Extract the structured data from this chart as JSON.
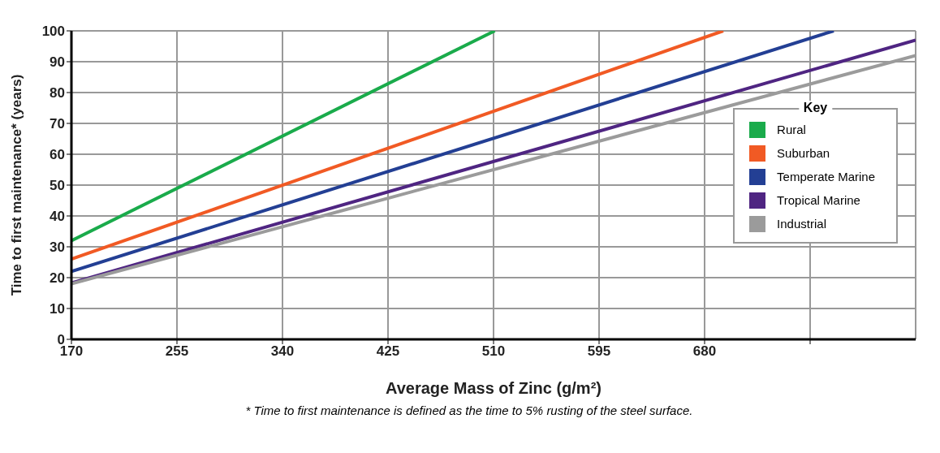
{
  "chart_data": {
    "type": "line",
    "xlabel": "Average Mass of Zinc (g/m²)",
    "ylabel": "Time to first maintenance* (years)",
    "legend_title": "Key",
    "annotations": [
      "* Time to first maintenance is defined as the time to 5% rusting of the steel surface."
    ],
    "xlim": [
      170,
      850
    ],
    "xticks": [
      170,
      255,
      340,
      425,
      510,
      595,
      680,
      {
        "value": 765,
        "label": null
      }
    ],
    "ylim": [
      0,
      100
    ],
    "yticks": [
      0,
      10,
      20,
      30,
      40,
      50,
      60,
      70,
      80,
      90,
      100
    ],
    "grid": true,
    "legend": "top right",
    "marker": "none",
    "line_style": "solid",
    "series": [
      {
        "name": "Rural",
        "color": "#1aab4b",
        "x": [
          170,
          511
        ],
        "values": [
          32,
          100
        ]
      },
      {
        "name": "Suburban",
        "color": "#f15a24",
        "x": [
          170,
          695
        ],
        "values": [
          26,
          100
        ]
      },
      {
        "name": "Temperate Marine",
        "color": "#233f94",
        "x": [
          170,
          784
        ],
        "values": [
          22,
          100
        ]
      },
      {
        "name": "Tropical Marine",
        "color": "#4f2582",
        "x": [
          170,
          850
        ],
        "values": [
          18.3,
          97
        ]
      },
      {
        "name": "Industrial",
        "color": "#9b9b9b",
        "x": [
          170,
          850
        ],
        "values": [
          18,
          92
        ]
      }
    ]
  }
}
